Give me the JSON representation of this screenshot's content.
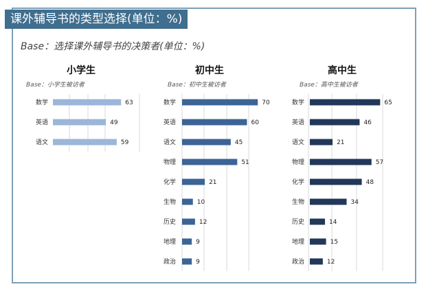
{
  "header": {
    "title": "课外辅导书的类型选择(单位：%)",
    "subtitle": "Base：选择课外辅导书的决策者(单位：%)"
  },
  "colors": {
    "primary": "#9bb6d8",
    "middle": "#3d6496",
    "high": "#22385a",
    "title_bg": "#3f6e8e",
    "frame": "#7c9fb6"
  },
  "chart_data": [
    {
      "type": "bar",
      "orientation": "horizontal",
      "title": "小学生",
      "base": "Base：小学生被访者",
      "categories": [
        "数学",
        "英语",
        "语文"
      ],
      "values": [
        63,
        49,
        59
      ],
      "xlim": [
        0,
        80
      ]
    },
    {
      "type": "bar",
      "orientation": "horizontal",
      "title": "初中生",
      "base": "Base：初中生被访者",
      "categories": [
        "数学",
        "英语",
        "语文",
        "物理",
        "化学",
        "生物",
        "历史",
        "地理",
        "政治"
      ],
      "values": [
        70,
        60,
        45,
        51,
        21,
        10,
        12,
        9,
        9
      ],
      "xlim": [
        0,
        80
      ]
    },
    {
      "type": "bar",
      "orientation": "horizontal",
      "title": "高中生",
      "base": "Base：高中生被访者",
      "categories": [
        "数学",
        "英语",
        "语文",
        "物理",
        "化学",
        "生物",
        "历史",
        "地理",
        "政治"
      ],
      "values": [
        65,
        46,
        21,
        57,
        48,
        34,
        14,
        15,
        12
      ],
      "xlim": [
        0,
        80
      ]
    }
  ]
}
